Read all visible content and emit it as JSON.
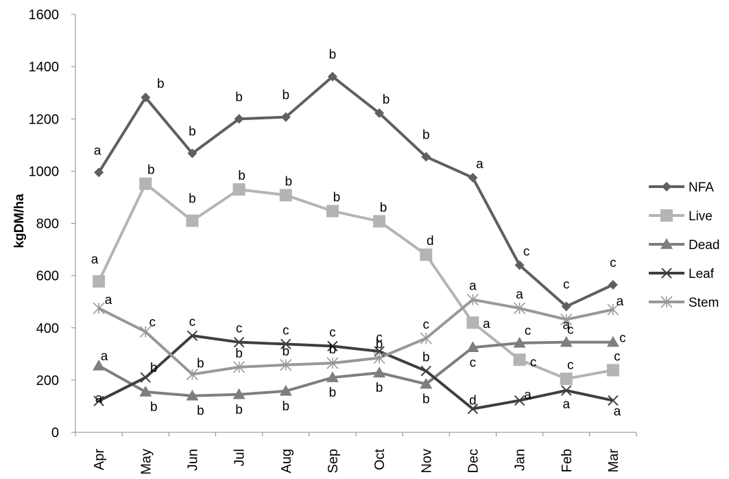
{
  "chart_data": {
    "type": "line",
    "title": "",
    "xlabel": "",
    "ylabel": "kgDM/ha",
    "ylim": [
      0,
      1600
    ],
    "yticks": [
      0,
      200,
      400,
      600,
      800,
      1000,
      1200,
      1400,
      1600
    ],
    "grid": false,
    "legend_position": "right",
    "categories": [
      "Apr",
      "May",
      "Jun",
      "Jul",
      "Aug",
      "Sep",
      "Oct",
      "Nov",
      "Dec",
      "Jan",
      "Feb",
      "Mar"
    ],
    "series": [
      {
        "name": "NFA",
        "marker": "diamond",
        "color": "#5f5f5f",
        "values": [
          995,
          1282,
          1068,
          1200,
          1207,
          1362,
          1222,
          1055,
          975,
          640,
          482,
          565
        ],
        "letters": [
          "a",
          "b",
          "b",
          "b",
          "b",
          "b",
          "b",
          "b",
          "a",
          "c",
          "c",
          "c"
        ]
      },
      {
        "name": "Live",
        "marker": "square",
        "color": "#b4b4b4",
        "values": [
          578,
          952,
          810,
          930,
          908,
          847,
          808,
          680,
          420,
          278,
          205,
          238
        ],
        "letters": [
          "a",
          "b",
          "b",
          "b",
          "b",
          "b",
          "b",
          "d",
          "a",
          "c",
          "c",
          "c"
        ]
      },
      {
        "name": "Dead",
        "marker": "triangle",
        "color": "#7e7e7e",
        "values": [
          255,
          155,
          140,
          145,
          158,
          210,
          228,
          185,
          325,
          342,
          345,
          345
        ],
        "letters": [
          "a",
          "b",
          "b",
          "b",
          "b",
          "b",
          "b",
          "b",
          "c",
          "c",
          "c",
          "c"
        ]
      },
      {
        "name": "Leaf",
        "marker": "x",
        "color": "#3e3e3e",
        "values": [
          120,
          210,
          370,
          345,
          338,
          330,
          310,
          235,
          90,
          122,
          160,
          122
        ],
        "letters": [
          "a",
          "b",
          "c",
          "c",
          "c",
          "c",
          "c",
          "b",
          "d",
          "a",
          "a",
          "a"
        ]
      },
      {
        "name": "Stem",
        "marker": "asterisk",
        "color": "#989898",
        "values": [
          475,
          385,
          222,
          250,
          258,
          265,
          285,
          360,
          508,
          475,
          432,
          470
        ],
        "letters": [
          "a",
          "c",
          "b",
          "b",
          "b",
          "b",
          "b",
          "c",
          "a",
          "a",
          "a",
          "a"
        ]
      }
    ]
  }
}
